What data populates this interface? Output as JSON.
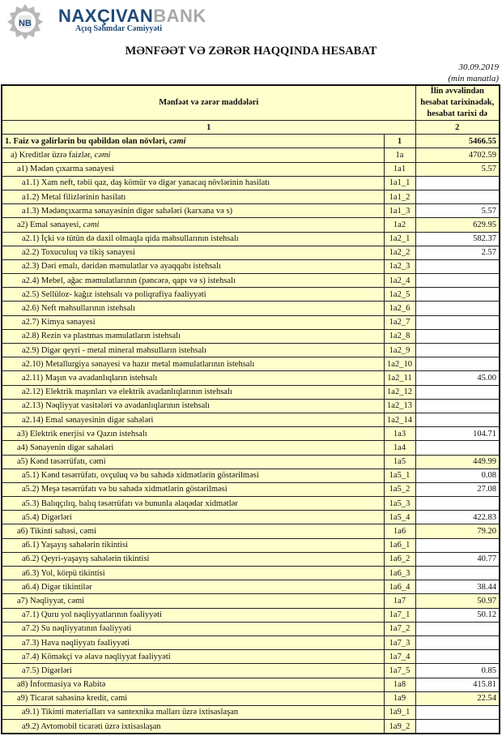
{
  "header": {
    "logo_text": "NB",
    "brand_part1": "NAXÇIVAN",
    "brand_part2": "BANK",
    "subtitle": "Açıq Səhmdar Cəmiyyəti",
    "title": "MƏNFƏƏT VƏ ZƏRƏR HAQQINDA HESABAT",
    "date": "30.09.2019",
    "unit": "(min manatla)"
  },
  "table": {
    "col_items": "Mənfəət və zərər maddələri",
    "col_value": "İlin əvvəlindən hesabat tarixinədək, hesabat tarixi də",
    "col_num_1": "1",
    "col_num_2": "2",
    "rows": [
      {
        "label": "1. Faiz və gəlirlərin bu qəbildən olan növləri, ",
        "label_em": "cəmi",
        "code": "1",
        "value": "5466.55",
        "indent": 0,
        "bold": true,
        "hl": true
      },
      {
        "label": "a) Kreditlər üzrə faizlər, ",
        "label_em": "cəmi",
        "code": "1a",
        "value": "4702.59",
        "indent": 1,
        "hl": true
      },
      {
        "label": "a1) Mədən çıxarma sənayesi",
        "code": "1a1",
        "value": "5.57",
        "indent": 2,
        "hl": true
      },
      {
        "label": "a1.1) Xam neft, təbii qaz, daş kömür və digər yanacaq növlərinin hasilatı",
        "code": "1a1_1",
        "value": "",
        "indent": 3
      },
      {
        "label": "a1.2) Metal filizlərinin hasilatı",
        "code": "1a1_2",
        "value": "",
        "indent": 3
      },
      {
        "label": "a1.3) Mədənçıxarma sənayəsinin digər sahələri (karxana və s)",
        "code": "1a1_3",
        "value": "5.57",
        "indent": 3
      },
      {
        "label": "a2) Emal sənayesi, ",
        "label_em": "cəmi",
        "code": "1a2",
        "value": "629.95",
        "indent": 2,
        "hl": true
      },
      {
        "label": "a2.1) İçki və tütün də daxil olmaqla qida məhsullarının istehsalı",
        "code": "1a2_1",
        "value": "582.37",
        "indent": 3
      },
      {
        "label": "a2.2) Toxuculuq və tikiş sənayesi",
        "code": "1a2_2",
        "value": "2.57",
        "indent": 3
      },
      {
        "label": "a2.3) Dəri emalı, dəridən məmulatlar və ayaqqabı istehsalı",
        "code": "1a2_3",
        "value": "",
        "indent": 3
      },
      {
        "label": "a2.4) Mebel, ağac məmulatlarının (pəncərə, qapı və s) istehsalı",
        "code": "1a2_4",
        "value": "",
        "indent": 3
      },
      {
        "label": "a2.5) Sellüloz- kağız istehsalı və poliqrafiya fəaliyyəti",
        "code": "1a2_5",
        "value": "",
        "indent": 3
      },
      {
        "label": "a2.6) Neft məhsullarının istehsalı",
        "code": "1a2_6",
        "value": "",
        "indent": 3
      },
      {
        "label": "a2.7) Kimya sənayesi",
        "code": "1a2_7",
        "value": "",
        "indent": 3
      },
      {
        "label": "a2.8) Rezin və plastmas məmulatların istehsalı",
        "code": "1a2_8",
        "value": "",
        "indent": 3
      },
      {
        "label": "a2.9) Digər qeyri - metal mineral məhsulların istehsalı",
        "code": "1a2_9",
        "value": "",
        "indent": 3
      },
      {
        "label": "a2.10) Metallurgiya sənayesi və hazır metal məmulatlarının istehsalı",
        "code": "1a2_10",
        "value": "",
        "indent": 3
      },
      {
        "label": "a2.11) Maşın və avadanlıqların istehsalı",
        "code": "1a2_11",
        "value": "45.00",
        "indent": 3
      },
      {
        "label": "a2.12) Elektrik maşınları və elektrik avadanlıqlarının istehsalı",
        "code": "1a2_12",
        "value": "",
        "indent": 3
      },
      {
        "label": "a2.13) Nəqliyyat vasitələri və avadanlıqlarının istehsalı",
        "code": "1a2_13",
        "value": "",
        "indent": 3
      },
      {
        "label": "a2.14) Emal sənayesinin digər sahələri",
        "code": "1a2_14",
        "value": "",
        "indent": 3
      },
      {
        "label": "a3) Elektrik enerjisi və Qazın istehsalı",
        "code": "1a3",
        "value": "104.71",
        "indent": 2
      },
      {
        "label": "a4) Sənayenin digər sahələri",
        "code": "1a4",
        "value": "",
        "indent": 2
      },
      {
        "label": "a5) Kənd təsərrüfatı, cəmi",
        "code": "1a5",
        "value": "449.99",
        "indent": 2,
        "hl": true
      },
      {
        "label": "a5.1) Kənd təsərrüfatı, ovçuluq və bu sahədə xidmətlərin göstərilməsi",
        "code": "1a5_1",
        "value": "0.08",
        "indent": 3
      },
      {
        "label": "a5.2) Meşə təsərrüfatı və bu sahədə xidmətlərin göstərilməsi",
        "code": "1a5_2",
        "value": "27.08",
        "indent": 3
      },
      {
        "label": "a5.3) Balıqçılıq, balıq təsərrüfatı və bununla əlaqədar xidmətlər",
        "code": "1a5_3",
        "value": "",
        "indent": 3
      },
      {
        "label": "a5.4) Digərləri",
        "code": "1a5_4",
        "value": "422.83",
        "indent": 3
      },
      {
        "label": "a6) Tikinti sahəsi, cəmi",
        "code": "1a6",
        "value": "79.20",
        "indent": 2,
        "hl": true
      },
      {
        "label": "a6.1) Yaşayış sahələrin tikintisi",
        "code": "1a6_1",
        "value": "",
        "indent": 3
      },
      {
        "label": "a6.2) Qeyri-yaşayış sahələrin tikintisi",
        "code": "1a6_2",
        "value": "40.77",
        "indent": 3
      },
      {
        "label": "a6.3) Yol, körpü tikintisi",
        "code": "1a6_3",
        "value": "",
        "indent": 3
      },
      {
        "label": "a6.4) Digər tikintilər",
        "code": "1a6_4",
        "value": "38.44",
        "indent": 3
      },
      {
        "label": "a7) Nəqliyyat, cəmi",
        "code": "1a7",
        "value": "50.97",
        "indent": 2,
        "hl": true
      },
      {
        "label": "a7.1) Quru yol nəqliyyatlarının fəaliyyəti",
        "code": "1a7_1",
        "value": "50.12",
        "indent": 3
      },
      {
        "label": "a7.2) Su nəqliyyatının fəaliyyəti",
        "code": "1a7_2",
        "value": "",
        "indent": 3
      },
      {
        "label": "a7.3) Hava nəqliyyatı fəaliyyəti",
        "code": "1a7_3",
        "value": "",
        "indent": 3
      },
      {
        "label": "a7.4) Köməkçi və əlavə nəqliyyat fəaliyyəti",
        "code": "1a7_4",
        "value": "",
        "indent": 3
      },
      {
        "label": "a7.5) Digərləri",
        "code": "1a7_5",
        "value": "0.85",
        "indent": 3
      },
      {
        "label": "a8)  İnformasiya və Rabitə",
        "code": "1a8",
        "value": "415.81",
        "indent": 2
      },
      {
        "label": "a9) Ticarət sahəsinə kredit, cəmi",
        "code": "1a9",
        "value": "22.54",
        "indent": 2,
        "hl": true
      },
      {
        "label": "a9.1) Tikinti materialları və santexnika malları üzrə ixtisaslaşan",
        "code": "1a9_1",
        "value": "",
        "indent": 3
      },
      {
        "label": "a9.2) Avtomobil ticarəti üzrə ixtisaslaşan",
        "code": "1a9_2",
        "value": "",
        "indent": 3
      }
    ]
  },
  "colors": {
    "cell_bg": "#ffffcc",
    "brand_blue": "#1f4a78",
    "brand_gray": "#a8a8a8"
  }
}
